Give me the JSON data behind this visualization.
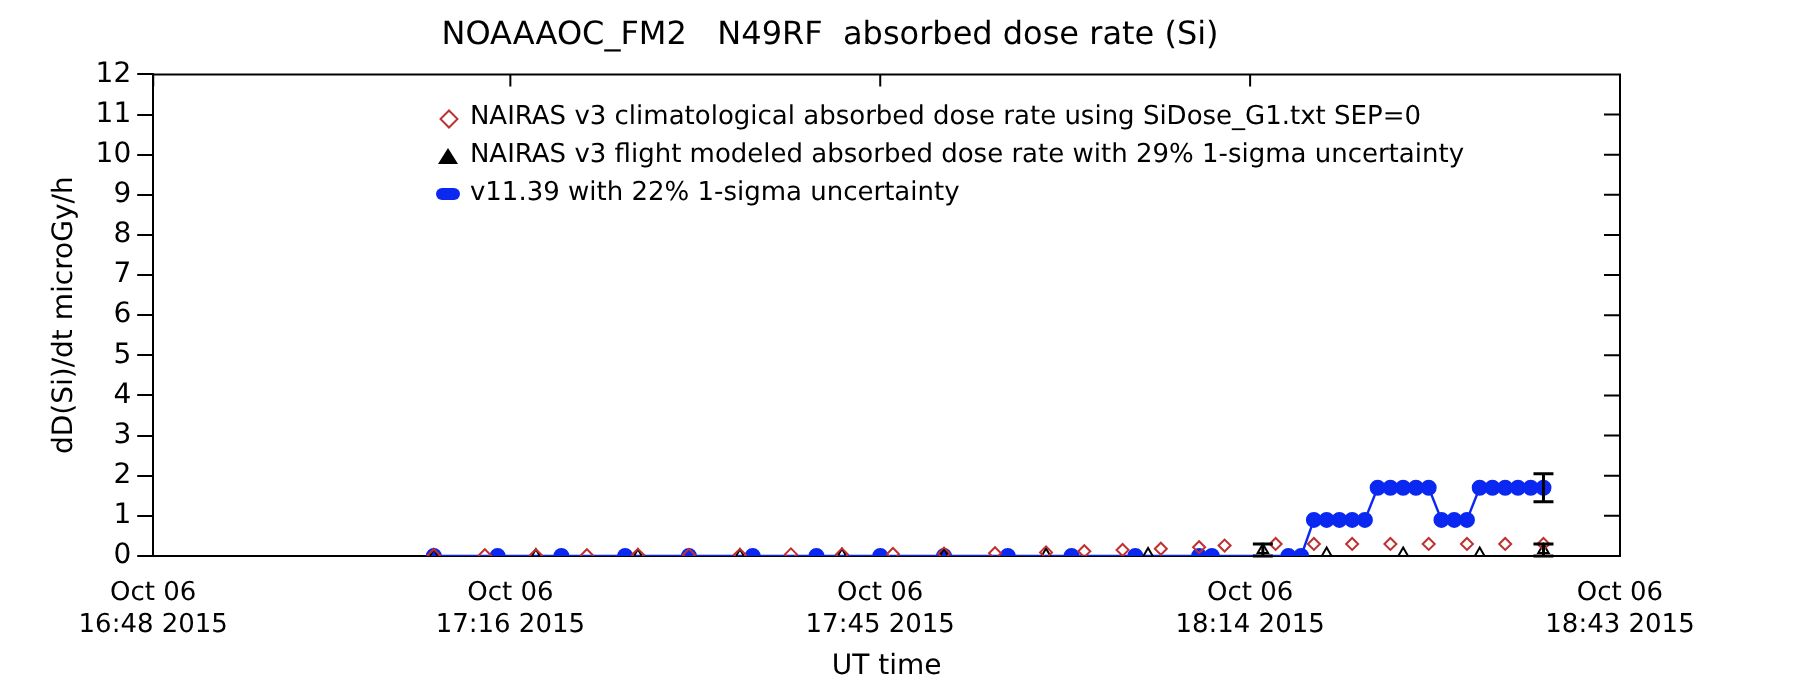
{
  "chart_data": {
    "type": "line",
    "title": "NOAAAOC_FM2   N49RF  absorbed dose rate (Si)",
    "xlabel": "UT time",
    "ylabel": "dD(Si)/dt microGy/h",
    "xlim": [
      "2015-10-06T16:48",
      "2015-10-06T18:43"
    ],
    "xticks": [
      {
        "value": "2015-10-06T16:48",
        "label": "Oct 06\n16:48 2015"
      },
      {
        "value": "2015-10-06T17:16",
        "label": "Oct 06\n17:16 2015"
      },
      {
        "value": "2015-10-06T17:45",
        "label": "Oct 06\n17:45 2015"
      },
      {
        "value": "2015-10-06T18:14",
        "label": "Oct 06\n18:14 2015"
      },
      {
        "value": "2015-10-06T18:43",
        "label": "Oct 06\n18:43 2015"
      }
    ],
    "ylim": [
      0,
      12
    ],
    "yticks": [
      0,
      1,
      2,
      3,
      4,
      5,
      6,
      7,
      8,
      9,
      10,
      11,
      12
    ],
    "grid": false,
    "legend": "top",
    "series": [
      {
        "name": "NAIRAS v3 climatological absorbed dose rate using SiDose_G1.txt SEP=0",
        "type": "scatter",
        "marker": "diamond",
        "color": "#c03030",
        "x": [
          "2015-10-06T17:10",
          "2015-10-06T17:14",
          "2015-10-06T17:18",
          "2015-10-06T17:22",
          "2015-10-06T17:26",
          "2015-10-06T17:30",
          "2015-10-06T17:34",
          "2015-10-06T17:38",
          "2015-10-06T17:42",
          "2015-10-06T17:46",
          "2015-10-06T17:50",
          "2015-10-06T17:54",
          "2015-10-06T17:58",
          "2015-10-06T18:01",
          "2015-10-06T18:04",
          "2015-10-06T18:07",
          "2015-10-06T18:10",
          "2015-10-06T18:12",
          "2015-10-06T18:16",
          "2015-10-06T18:19",
          "2015-10-06T18:22",
          "2015-10-06T18:25",
          "2015-10-06T18:28",
          "2015-10-06T18:31",
          "2015-10-06T18:34",
          "2015-10-06T18:37"
        ],
        "values": [
          0.02,
          0.02,
          0.02,
          0.02,
          0.03,
          0.03,
          0.03,
          0.04,
          0.04,
          0.05,
          0.06,
          0.07,
          0.09,
          0.12,
          0.15,
          0.18,
          0.22,
          0.26,
          0.3,
          0.3,
          0.3,
          0.3,
          0.3,
          0.3,
          0.3,
          0.3
        ]
      },
      {
        "name": "NAIRAS v3 flight modeled absorbed dose rate with 29% 1-sigma uncertainty",
        "type": "scatter",
        "marker": "triangle",
        "color": "#000000",
        "x": [
          "2015-10-06T17:10",
          "2015-10-06T17:18",
          "2015-10-06T17:26",
          "2015-10-06T17:34",
          "2015-10-06T17:42",
          "2015-10-06T17:50",
          "2015-10-06T17:58",
          "2015-10-06T18:06",
          "2015-10-06T18:15",
          "2015-10-06T18:20",
          "2015-10-06T18:26",
          "2015-10-06T18:32",
          "2015-10-06T18:37"
        ],
        "values": [
          0.02,
          0.02,
          0.02,
          0.02,
          0.03,
          0.03,
          0.04,
          0.05,
          0.15,
          0.06,
          0.06,
          0.06,
          0.15
        ],
        "errors": [
          null,
          null,
          null,
          null,
          null,
          null,
          null,
          null,
          0.15,
          null,
          null,
          null,
          0.15
        ]
      },
      {
        "name": "v11.39 with 22% 1-sigma uncertainty",
        "type": "line",
        "marker": "circle",
        "color": "#0a28f0",
        "x": [
          "2015-10-06T17:10",
          "2015-10-06T17:15",
          "2015-10-06T17:20",
          "2015-10-06T17:25",
          "2015-10-06T17:30",
          "2015-10-06T17:35",
          "2015-10-06T17:40",
          "2015-10-06T17:45",
          "2015-10-06T17:50",
          "2015-10-06T17:55",
          "2015-10-06T18:00",
          "2015-10-06T18:05",
          "2015-10-06T18:10",
          "2015-10-06T18:11",
          "2015-10-06T18:17",
          "2015-10-06T18:18",
          "2015-10-06T18:19",
          "2015-10-06T18:20",
          "2015-10-06T18:21",
          "2015-10-06T18:22",
          "2015-10-06T18:23",
          "2015-10-06T18:24",
          "2015-10-06T18:25",
          "2015-10-06T18:26",
          "2015-10-06T18:27",
          "2015-10-06T18:28",
          "2015-10-06T18:29",
          "2015-10-06T18:30",
          "2015-10-06T18:31",
          "2015-10-06T18:32",
          "2015-10-06T18:33",
          "2015-10-06T18:34",
          "2015-10-06T18:35",
          "2015-10-06T18:36",
          "2015-10-06T18:37"
        ],
        "values": [
          0,
          0,
          0,
          0,
          0,
          0,
          0,
          0,
          0,
          0,
          0,
          0,
          0,
          0,
          0,
          0,
          0.9,
          0.9,
          0.9,
          0.9,
          0.9,
          1.7,
          1.7,
          1.7,
          1.7,
          1.7,
          0.9,
          0.9,
          0.9,
          1.7,
          1.7,
          1.7,
          1.7,
          1.7,
          1.7
        ],
        "errors": [
          null,
          null,
          null,
          null,
          null,
          null,
          null,
          null,
          null,
          null,
          null,
          null,
          null,
          null,
          null,
          null,
          null,
          null,
          null,
          null,
          null,
          null,
          null,
          null,
          null,
          null,
          null,
          null,
          null,
          null,
          null,
          null,
          null,
          null,
          0.35
        ]
      }
    ]
  }
}
